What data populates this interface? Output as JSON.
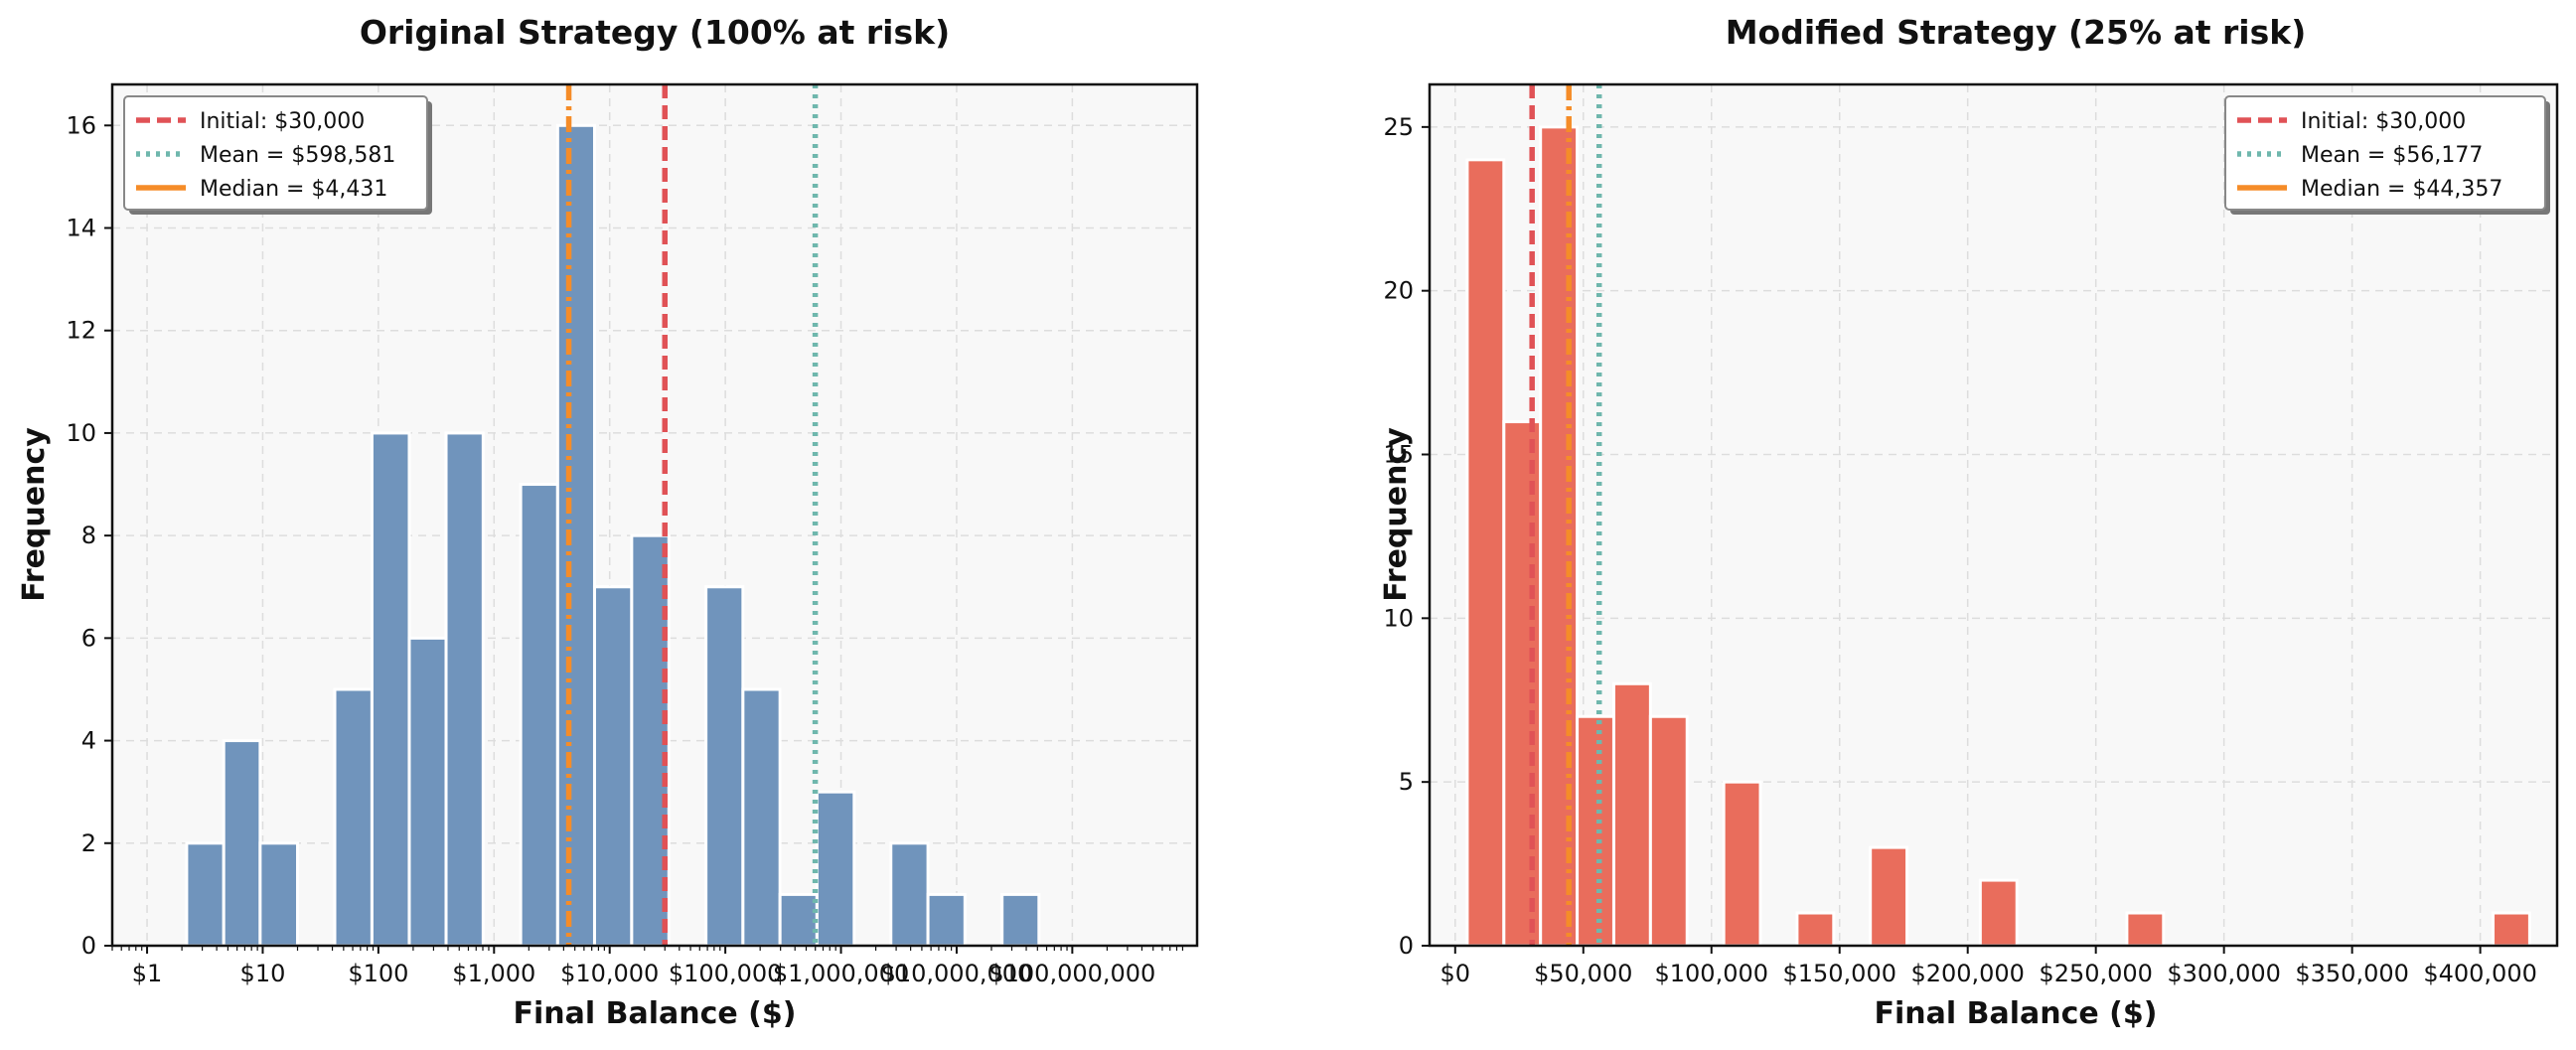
{
  "chart_data": [
    {
      "type": "bar",
      "title": "Original Strategy (100% at risk)",
      "xlabel": "Final Balance ($)",
      "ylabel": "Frequency",
      "xscale": "log",
      "xlim": [
        0.5,
        1200000000
      ],
      "ylim": [
        0,
        16.8
      ],
      "grid": true,
      "bar_color": "#7094bc",
      "x_ticks": [
        {
          "value": 1,
          "label": "$1"
        },
        {
          "value": 10,
          "label": "$10"
        },
        {
          "value": 100,
          "label": "$100"
        },
        {
          "value": 1000,
          "label": "$1,000"
        },
        {
          "value": 10000,
          "label": "$10,000"
        },
        {
          "value": 100000,
          "label": "$100,000"
        },
        {
          "value": 1000000,
          "label": "$1,000,000"
        },
        {
          "value": 10000000,
          "label": "$10,000,000"
        },
        {
          "value": 100000000,
          "label": "$100,000,000"
        }
      ],
      "y_ticks": [
        0,
        2,
        4,
        6,
        8,
        10,
        12,
        14,
        16
      ],
      "bins": [
        {
          "x0": 2.2,
          "x1": 4.6,
          "count": 2
        },
        {
          "x0": 4.6,
          "x1": 9.5,
          "count": 4
        },
        {
          "x0": 9.5,
          "x1": 20,
          "count": 2
        },
        {
          "x0": 20,
          "x1": 42,
          "count": 0
        },
        {
          "x0": 42,
          "x1": 88,
          "count": 5
        },
        {
          "x0": 88,
          "x1": 185,
          "count": 10
        },
        {
          "x0": 185,
          "x1": 385,
          "count": 6
        },
        {
          "x0": 385,
          "x1": 805,
          "count": 10
        },
        {
          "x0": 805,
          "x1": 1700,
          "count": 0
        },
        {
          "x0": 1700,
          "x1": 3550,
          "count": 9
        },
        {
          "x0": 3550,
          "x1": 7400,
          "count": 16
        },
        {
          "x0": 7400,
          "x1": 15500,
          "count": 7
        },
        {
          "x0": 15500,
          "x1": 32500,
          "count": 8
        },
        {
          "x0": 32500,
          "x1": 68000,
          "count": 0
        },
        {
          "x0": 68000,
          "x1": 142000,
          "count": 7
        },
        {
          "x0": 142000,
          "x1": 297000,
          "count": 5
        },
        {
          "x0": 297000,
          "x1": 620000,
          "count": 1
        },
        {
          "x0": 620000,
          "x1": 1300000,
          "count": 3
        },
        {
          "x0": 1300000,
          "x1": 2700000,
          "count": 0
        },
        {
          "x0": 2700000,
          "x1": 5650000,
          "count": 2
        },
        {
          "x0": 5650000,
          "x1": 11800000,
          "count": 1
        },
        {
          "x0": 11800000,
          "x1": 24700000,
          "count": 0
        },
        {
          "x0": 24700000,
          "x1": 51500000,
          "count": 1
        }
      ],
      "lines": [
        {
          "label": "Initial: $30,000",
          "value": 30000,
          "color": "#e05256",
          "style": "dashed"
        },
        {
          "label": "Mean = $598,581",
          "value": 598581,
          "color": "#6fb7ad",
          "style": "dotted"
        },
        {
          "label": "Median = $4,431",
          "value": 4431,
          "color": "#f58c28",
          "style": "dashdot"
        }
      ],
      "legend_position": "top-left"
    },
    {
      "type": "bar",
      "title": "Modified Strategy (25% at risk)",
      "xlabel": "Final Balance ($)",
      "ylabel": "Frequency",
      "xscale": "linear",
      "xlim": [
        -10000,
        430000
      ],
      "ylim": [
        0,
        26.3
      ],
      "grid": true,
      "bar_color": "#e96d5c",
      "x_ticks": [
        {
          "value": 0,
          "label": "$0"
        },
        {
          "value": 50000,
          "label": "$50,000"
        },
        {
          "value": 100000,
          "label": "$100,000"
        },
        {
          "value": 150000,
          "label": "$150,000"
        },
        {
          "value": 200000,
          "label": "$200,000"
        },
        {
          "value": 250000,
          "label": "$250,000"
        },
        {
          "value": 300000,
          "label": "$300,000"
        },
        {
          "value": 350000,
          "label": "$350,000"
        },
        {
          "value": 400000,
          "label": "$400,000"
        }
      ],
      "y_ticks": [
        0,
        5,
        10,
        15,
        20,
        25
      ],
      "bins": [
        {
          "x0": 4700,
          "x1": 19000,
          "count": 24
        },
        {
          "x0": 19000,
          "x1": 33300,
          "count": 16
        },
        {
          "x0": 33300,
          "x1": 47600,
          "count": 25
        },
        {
          "x0": 47600,
          "x1": 61900,
          "count": 7
        },
        {
          "x0": 61900,
          "x1": 76200,
          "count": 8
        },
        {
          "x0": 76200,
          "x1": 90500,
          "count": 7
        },
        {
          "x0": 90500,
          "x1": 104800,
          "count": 0
        },
        {
          "x0": 104800,
          "x1": 119100,
          "count": 5
        },
        {
          "x0": 119100,
          "x1": 133400,
          "count": 0
        },
        {
          "x0": 133400,
          "x1": 147700,
          "count": 1
        },
        {
          "x0": 147700,
          "x1": 162000,
          "count": 0
        },
        {
          "x0": 162000,
          "x1": 176300,
          "count": 3
        },
        {
          "x0": 176300,
          "x1": 190600,
          "count": 0
        },
        {
          "x0": 190600,
          "x1": 204900,
          "count": 0
        },
        {
          "x0": 204900,
          "x1": 219200,
          "count": 2
        },
        {
          "x0": 219200,
          "x1": 233500,
          "count": 0
        },
        {
          "x0": 233500,
          "x1": 247800,
          "count": 0
        },
        {
          "x0": 247800,
          "x1": 262100,
          "count": 0
        },
        {
          "x0": 262100,
          "x1": 276400,
          "count": 1
        },
        {
          "x0": 276400,
          "x1": 390700,
          "count": 0
        },
        {
          "x0": 390700,
          "x1": 405000,
          "count": 0
        },
        {
          "x0": 405000,
          "x1": 419300,
          "count": 1
        }
      ],
      "lines": [
        {
          "label": "Initial: $30,000",
          "value": 30000,
          "color": "#e05256",
          "style": "dashed"
        },
        {
          "label": "Mean = $56,177",
          "value": 56177,
          "color": "#6fb7ad",
          "style": "dotted"
        },
        {
          "label": "Median = $44,357",
          "value": 44357,
          "color": "#f58c28",
          "style": "dashdot"
        }
      ],
      "legend_position": "top-right"
    }
  ]
}
